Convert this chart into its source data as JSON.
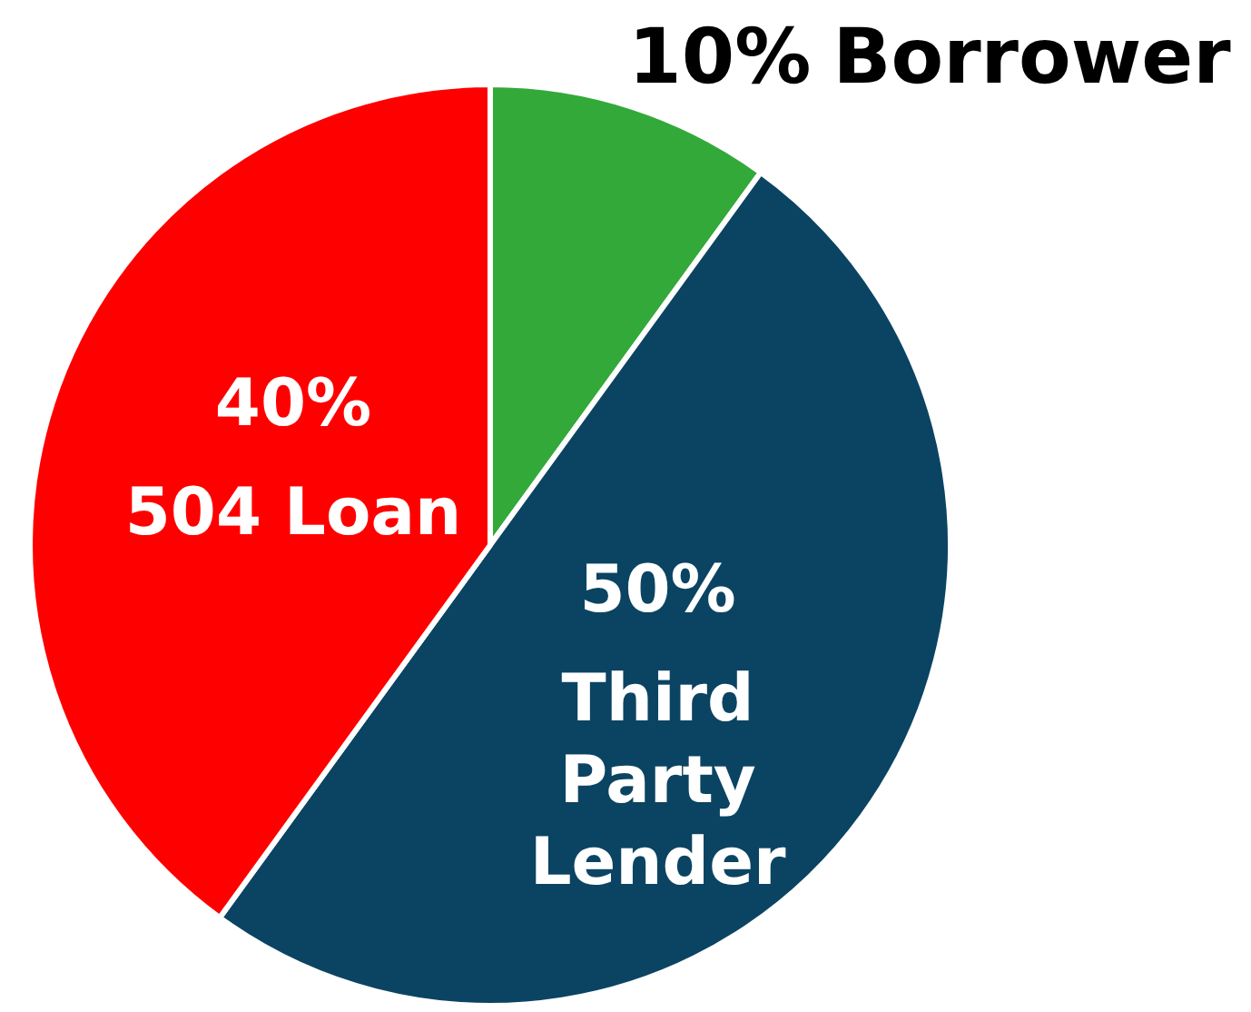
{
  "chart_data": {
    "type": "pie",
    "categories": [
      "Borrower",
      "Third Party Lender",
      "504 Loan"
    ],
    "values": [
      10,
      50,
      40
    ],
    "colors": [
      "#33a93a",
      "#0b4462",
      "#ff0000"
    ],
    "value_labels": [
      "10%",
      "50%",
      "40%"
    ],
    "legend": false
  }
}
